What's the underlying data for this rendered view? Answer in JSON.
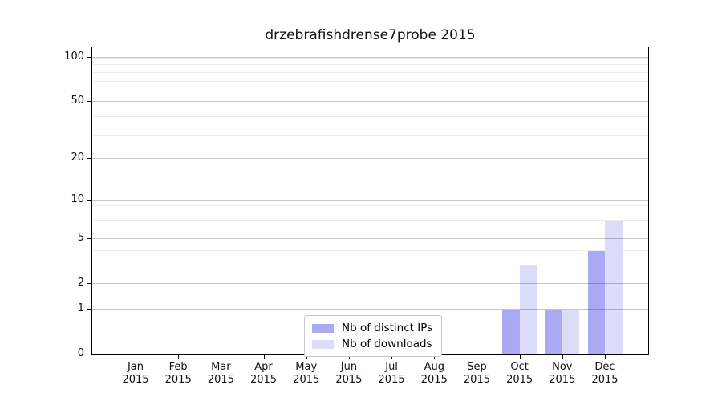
{
  "figure": {
    "background": "#ffffff"
  },
  "chart_data": {
    "type": "bar",
    "title": "drzebrafishdrense7probe 2015",
    "categories": [
      "Jan",
      "Feb",
      "Mar",
      "Apr",
      "May",
      "Jun",
      "Jul",
      "Aug",
      "Sep",
      "Oct",
      "Nov",
      "Dec"
    ],
    "category_year": "2015",
    "series": [
      {
        "name": "Nb of distinct IPs",
        "color": "#aaaaf4",
        "values": [
          0,
          0,
          0,
          0,
          0,
          0,
          0,
          0,
          0,
          1,
          1,
          4
        ]
      },
      {
        "name": "Nb of downloads",
        "color": "#dcdcf8",
        "values": [
          0,
          0,
          0,
          0,
          0,
          0,
          0,
          0,
          0,
          3,
          1,
          7
        ]
      }
    ],
    "yscale": "log1p",
    "ymax": 118,
    "y_ticks": [
      0,
      1,
      2,
      5,
      10,
      20,
      50,
      100
    ],
    "xlabel": "",
    "ylabel": "",
    "grid": "horizontal",
    "legend_position": "lower center",
    "colors": {
      "axis": "#000000",
      "major_grid": "rgba(0,0,0,0.22)",
      "minor_grid": "rgba(0,0,0,0.08)",
      "text": "#111111"
    }
  }
}
